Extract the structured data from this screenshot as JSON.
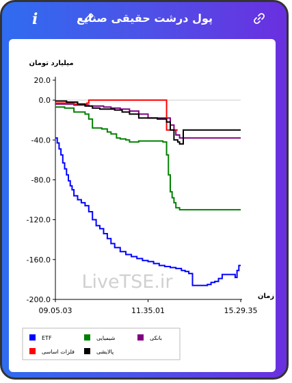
{
  "header": {
    "title": "پول درشت حقیقی صنایع",
    "icons": [
      "info-icon",
      "edit-icon",
      "link-icon"
    ]
  },
  "watermark": "LiveTSE.ir",
  "chart_data": {
    "type": "line",
    "ylabel": "میلیارد تومان",
    "xlabel": "زمان",
    "ylim": [
      -200,
      20
    ],
    "yticks": [
      "20.0",
      "0.0",
      "-40.0",
      "-80.0",
      "-120.0",
      "-160.0",
      "-200.0"
    ],
    "xticks": [
      "09.05.03",
      "11.35.01",
      "15.29.35"
    ],
    "xrange": [
      0,
      100
    ],
    "series": [
      {
        "name": "ETF",
        "color": "#0000ff",
        "x": [
          0,
          1,
          2,
          3,
          4,
          5,
          6,
          7,
          8,
          9,
          10,
          12,
          14,
          16,
          18,
          20,
          22,
          24,
          26,
          28,
          30,
          32,
          35,
          38,
          41,
          44,
          47,
          50,
          53,
          56,
          59,
          62,
          65,
          68,
          70,
          72,
          74,
          76,
          78,
          80,
          82,
          84,
          86,
          88,
          90,
          92,
          94,
          96,
          97,
          98,
          99,
          100
        ],
        "y": [
          -38,
          -43,
          -49,
          -55,
          -63,
          -69,
          -75,
          -81,
          -86,
          -90,
          -96,
          -100,
          -103,
          -106,
          -112,
          -120,
          -126,
          -129,
          -134,
          -139,
          -144,
          -148,
          -152,
          -155,
          -157,
          -159,
          -161,
          -162,
          -164,
          -166,
          -167,
          -168,
          -169,
          -171,
          -172,
          -174,
          -186,
          -186,
          -186,
          -186,
          -185,
          -183,
          -182,
          -179,
          -175,
          -175,
          -175,
          -175,
          -178,
          -171,
          -166,
          -166
        ]
      },
      {
        "name": "شیمیایی",
        "color": "#008000",
        "x": [
          0,
          5,
          10,
          14,
          16,
          18,
          20,
          22,
          25,
          28,
          30,
          33,
          35,
          38,
          40,
          45,
          50,
          55,
          58,
          60,
          61,
          62,
          63,
          64,
          65,
          67,
          70,
          75,
          80,
          85,
          90,
          95,
          100
        ],
        "y": [
          -7,
          -8,
          -12,
          -12,
          -14,
          -19,
          -28,
          -28,
          -29,
          -32,
          -34,
          -38,
          -39,
          -40,
          -42,
          -41,
          -41,
          -41,
          -42,
          -55,
          -75,
          -92,
          -98,
          -103,
          -108,
          -110,
          -110,
          -110,
          -110,
          -110,
          -110,
          -110,
          -110
        ]
      },
      {
        "name": "بانکی",
        "color": "#800080",
        "x": [
          0,
          5,
          10,
          15,
          18,
          22,
          26,
          30,
          35,
          40,
          45,
          50,
          55,
          58,
          60,
          62,
          64,
          65,
          67,
          70,
          75,
          80,
          85,
          90,
          95,
          100
        ],
        "y": [
          -4,
          -4,
          -5,
          -5,
          -6,
          -6,
          -7,
          -8,
          -9,
          -11,
          -14,
          -18,
          -18,
          -18,
          -18,
          -25,
          -30,
          -35,
          -38,
          -38,
          -38,
          -38,
          -38,
          -38,
          -38,
          -38
        ]
      },
      {
        "name": "فلزات اساسی",
        "color": "#ff0000",
        "x": [
          0,
          5,
          10,
          13,
          17,
          18,
          20,
          25,
          30,
          35,
          40,
          45,
          50,
          55,
          58,
          60,
          62,
          64,
          66
        ],
        "y": [
          -3,
          -3,
          -4,
          -4,
          -3,
          0,
          0,
          0,
          0,
          0,
          0,
          0,
          0,
          0,
          0,
          -30,
          -30,
          -30,
          -30
        ]
      },
      {
        "name": "پالایشی",
        "color": "#000000",
        "x": [
          0,
          3,
          6,
          9,
          12,
          16,
          20,
          24,
          28,
          32,
          36,
          40,
          45,
          50,
          55,
          58,
          60,
          62,
          64,
          66,
          67,
          68,
          69,
          70,
          72,
          75,
          80,
          85,
          90,
          95,
          100
        ],
        "y": [
          -1,
          -1,
          -2,
          -2,
          -4,
          -6,
          -8,
          -9,
          -9,
          -10,
          -12,
          -14,
          -18,
          -18,
          -19,
          -19,
          -22,
          -30,
          -40,
          -42,
          -44,
          -44,
          -30,
          -30,
          -30,
          -30,
          -30,
          -30,
          -30,
          -30,
          -30
        ]
      }
    ],
    "legend": {
      "placement": "bottom",
      "rows": [
        [
          {
            "label": "ETF",
            "color": "#0000ff"
          },
          {
            "label": "شیمیایی",
            "color": "#008000"
          },
          {
            "label": "بانکی",
            "color": "#800080"
          }
        ],
        [
          {
            "label": "فلزات اساسی",
            "color": "#ff0000"
          },
          {
            "label": "پالایشی",
            "color": "#000000"
          }
        ]
      ]
    }
  }
}
